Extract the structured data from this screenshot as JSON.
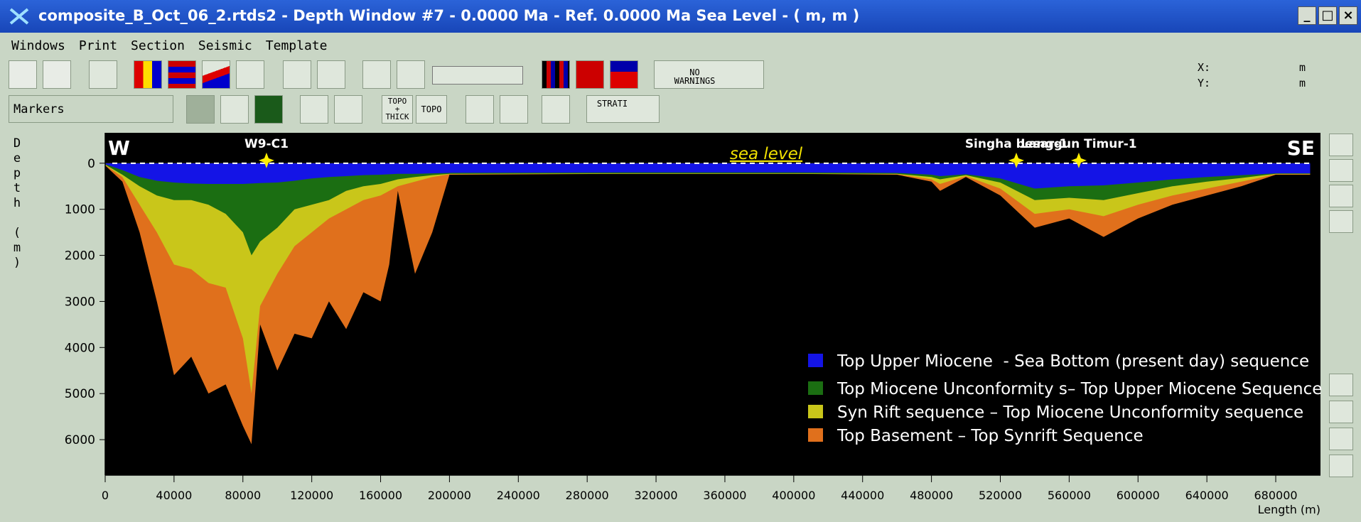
{
  "window": {
    "title": "composite_B_Oct_06_2.rtds2 - Depth Window #7 - 0.0000 Ma - Ref. 0.0000 Ma Sea Level - ( m, m )",
    "menu": [
      "Windows",
      "Print",
      "Section",
      "Seismic",
      "Template"
    ]
  },
  "toolbar": {
    "warnings": "NO\nWARNINGS",
    "coords": [
      {
        "label": "X:",
        "unit": "m"
      },
      {
        "label": "Y:",
        "unit": "m"
      }
    ],
    "markers": "Markers",
    "topo_thick": "TOPO\n+\nTHICK",
    "topo": "TOPO",
    "strati": "STRATI"
  },
  "chart_data": {
    "type": "area",
    "x_label": "Length (m)",
    "y_label": "Depth (m)",
    "y_inverted": true,
    "x": [
      0,
      10000,
      20000,
      30000,
      40000,
      50000,
      60000,
      70000,
      80000,
      85000,
      90000,
      100000,
      110000,
      120000,
      130000,
      140000,
      150000,
      160000,
      165000,
      170000,
      180000,
      190000,
      200000,
      300000,
      400000,
      460000,
      480000,
      485000,
      500000,
      520000,
      540000,
      560000,
      580000,
      600000,
      620000,
      640000,
      660000,
      680000,
      700000
    ],
    "series": [
      {
        "name": "Top Upper Miocene  - Sea Bottom (present day) sequence",
        "color": "#1414e6",
        "values": [
          20,
          150,
          300,
          380,
          420,
          440,
          450,
          450,
          450,
          440,
          430,
          420,
          380,
          330,
          300,
          280,
          260,
          250,
          240,
          230,
          230,
          220,
          210,
          200,
          200,
          210,
          250,
          280,
          240,
          330,
          550,
          500,
          480,
          420,
          350,
          300,
          260,
          220,
          220
        ]
      },
      {
        "name": "Top Miocene Unconformity s– Top Upper Miocene Sequence",
        "color": "#1b6e12",
        "values": [
          30,
          250,
          500,
          700,
          800,
          800,
          900,
          1100,
          1500,
          2000,
          1700,
          1400,
          1000,
          900,
          800,
          600,
          500,
          450,
          400,
          350,
          300,
          260,
          230,
          220,
          220,
          230,
          300,
          350,
          260,
          420,
          800,
          750,
          800,
          650,
          500,
          400,
          320,
          230,
          230
        ]
      },
      {
        "name": "Syn Rift sequence – Top Miocene Unconformity sequence",
        "color": "#c9c61a",
        "values": [
          40,
          300,
          900,
          1500,
          2200,
          2300,
          2600,
          2700,
          3800,
          5000,
          3100,
          2400,
          1800,
          1500,
          1200,
          1000,
          800,
          700,
          600,
          500,
          400,
          300,
          240,
          230,
          230,
          240,
          350,
          450,
          280,
          550,
          1100,
          1000,
          1150,
          900,
          700,
          550,
          400,
          240,
          240
        ]
      },
      {
        "name": "Top Basement – Top Synrift Sequence",
        "color": "#e0701c",
        "values": [
          50,
          400,
          1500,
          3000,
          4600,
          4200,
          5000,
          4800,
          5700,
          6100,
          3500,
          4500,
          3700,
          3800,
          3000,
          3600,
          2800,
          3000,
          2200,
          600,
          2400,
          1500,
          250,
          230,
          230,
          250,
          400,
          600,
          300,
          700,
          1400,
          1200,
          1600,
          1200,
          900,
          700,
          500,
          250,
          250
        ]
      }
    ],
    "xlim": [
      0,
      706000
    ],
    "ylim": [
      -660,
      6770
    ],
    "xticks": [
      0,
      40000,
      80000,
      120000,
      160000,
      200000,
      240000,
      280000,
      320000,
      360000,
      400000,
      440000,
      480000,
      520000,
      560000,
      600000,
      640000,
      680000
    ],
    "yticks": [
      0,
      1000,
      2000,
      3000,
      4000,
      5000,
      6000
    ],
    "annotations": {
      "west": "W",
      "east": "SE",
      "sea_level": "sea level"
    },
    "wells": [
      {
        "name": "W9-C1",
        "x": 93700
      },
      {
        "name": "Singha besar-1",
        "x": 529300
      },
      {
        "name": "Langgun Timur-1",
        "x": 565600
      }
    ]
  }
}
